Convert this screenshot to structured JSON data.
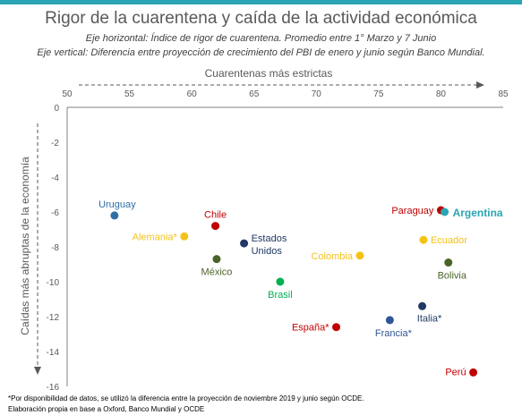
{
  "colors": {
    "accent": "#2aa5b3",
    "blue": "#2e6fa7",
    "red": "#c00000",
    "yellow": "#f5c218",
    "darkgreen": "#4a6428",
    "green": "#00b050",
    "navy": "#1f3864",
    "slateblue": "#2f5597",
    "teal": "#2aa5b3"
  },
  "chart_data": {
    "type": "scatter",
    "title": "Rigor de la cuarentena y caída de la actividad económica",
    "subtitle_1": "Eje horizontal: Índice de rigor de cuarentena.  Promedio entre 1° Marzo y 7 Junio",
    "subtitle_2": "Eje vertical:  Diferencia entre  proyección  de crecimiento  del PBI de enero y junio según Banco Mundial.",
    "x_arrow_label": "Cuarentenas más estrictas",
    "y_arrow_label": "Caídas más abruptas de la economía",
    "xlim": [
      50,
      85
    ],
    "ylim": [
      -16,
      0
    ],
    "x_ticks": [
      "50",
      "55",
      "60",
      "65",
      "70",
      "75",
      "80",
      "85"
    ],
    "y_ticks": [
      "0",
      "-2",
      "-4",
      "-6",
      "-8",
      "-10",
      "-12",
      "-14",
      "-16"
    ],
    "x_tick_values": [
      50,
      55,
      60,
      65,
      70,
      75,
      80,
      85
    ],
    "y_tick_values": [
      0,
      -2,
      -4,
      -6,
      -8,
      -10,
      -12,
      -14,
      -16
    ],
    "grid": false,
    "points": [
      {
        "label": "Uruguay",
        "x": 53.8,
        "y": -6.2,
        "color": "blue"
      },
      {
        "label": "Chile",
        "x": 61.9,
        "y": -6.8,
        "color": "red"
      },
      {
        "label": "Alemania*",
        "x": 59.4,
        "y": -7.4,
        "color": "yellow"
      },
      {
        "label": "Estados Unidos",
        "x": 64.2,
        "y": -7.8,
        "color": "navy"
      },
      {
        "label": "México",
        "x": 62.0,
        "y": -8.7,
        "color": "darkgreen"
      },
      {
        "label": "Brasil",
        "x": 67.1,
        "y": -10.0,
        "color": "green"
      },
      {
        "label": "Colombia",
        "x": 73.5,
        "y": -8.5,
        "color": "yellow"
      },
      {
        "label": "España*",
        "x": 71.6,
        "y": -12.6,
        "color": "red"
      },
      {
        "label": "Francia*",
        "x": 75.9,
        "y": -12.2,
        "color": "slateblue"
      },
      {
        "label": "Italia*",
        "x": 78.5,
        "y": -11.4,
        "color": "navy"
      },
      {
        "label": "Paraguay",
        "x": 80.0,
        "y": -5.9,
        "color": "red"
      },
      {
        "label": "Argentina",
        "x": 80.3,
        "y": -6.0,
        "color": "teal"
      },
      {
        "label": "Ecuador",
        "x": 78.6,
        "y": -7.6,
        "color": "yellow"
      },
      {
        "label": "Bolivia",
        "x": 80.6,
        "y": -8.9,
        "color": "darkgreen"
      },
      {
        "label": "Perú",
        "x": 82.6,
        "y": -15.2,
        "color": "red"
      }
    ]
  },
  "footnotes": {
    "line_1": "*Por disponibilidad de datos, se utilizó la diferencia entre la proyección de noviembre 2019 y junio según OCDE.",
    "line_2": "Elaboración propia en base a Oxford, Banco Mundial y OCDE"
  }
}
